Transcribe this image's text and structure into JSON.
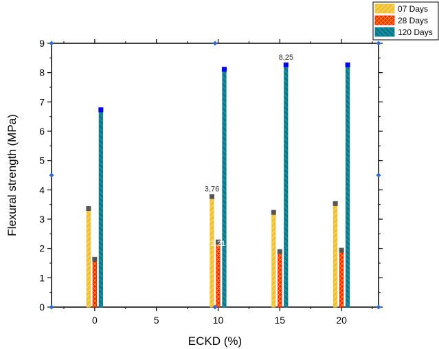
{
  "chart_data": {
    "type": "bar",
    "xlabel": "ECKD (%)",
    "ylabel": "Flexural strength (MPa)",
    "ylim": [
      0,
      9
    ],
    "xlim": [
      -3.5,
      23
    ],
    "x_ticks": [
      0,
      5,
      10,
      15,
      20
    ],
    "y_ticks": [
      0,
      1,
      2,
      3,
      4,
      5,
      6,
      7,
      8,
      9
    ],
    "grid": false,
    "legend_position": "top-right-outside",
    "bar_offsets": [
      -0.5,
      0,
      0.5
    ],
    "series": [
      {
        "name": "07 Days",
        "color": "#f2c12e",
        "marker_color": "#555555",
        "x": [
          0,
          10,
          15,
          20
        ],
        "values": [
          3.35,
          3.76,
          3.22,
          3.52
        ]
      },
      {
        "name": "28 Days",
        "color": "#ff1a00",
        "marker_color": "#555555",
        "x": [
          0,
          10,
          15,
          20
        ],
        "values": [
          1.62,
          2.21,
          1.88,
          1.93
        ]
      },
      {
        "name": "120 Days",
        "color": "#0a7a8a",
        "marker_color": "#0000ff",
        "x": [
          0,
          10,
          15,
          20
        ],
        "values": [
          6.72,
          8.1,
          8.25,
          8.25
        ]
      }
    ],
    "annotations": [
      {
        "text": "3,76",
        "x": 9.5,
        "y": 3.76,
        "color": "#333333"
      },
      {
        "text": "2,21",
        "x": 10,
        "y": 1.9,
        "color": "#ffffff"
      },
      {
        "text": "8,25",
        "x": 15.5,
        "y": 8.25,
        "color": "#333333"
      }
    ]
  }
}
